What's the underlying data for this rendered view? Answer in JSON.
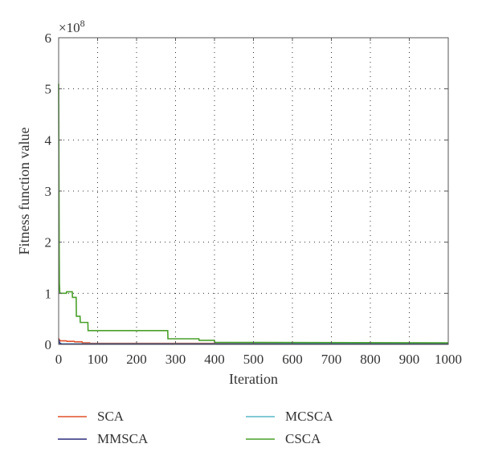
{
  "chart_data": {
    "type": "line",
    "xlabel": "Iteration",
    "ylabel": "Fitness function value",
    "y_multiplier_label": "×10",
    "y_multiplier_exponent": "8",
    "xlim": [
      0,
      1000
    ],
    "ylim": [
      0,
      6
    ],
    "x_ticks": [
      0,
      100,
      200,
      300,
      400,
      500,
      600,
      700,
      800,
      900,
      1000
    ],
    "y_ticks": [
      0,
      1,
      2,
      3,
      4,
      5,
      6
    ],
    "grid": "dotted",
    "legend_position": "below",
    "series": [
      {
        "name": "SCA",
        "color": "#e0502a",
        "x": [
          0,
          1,
          3,
          5,
          20,
          21,
          40,
          41,
          60,
          61,
          80,
          81,
          1000
        ],
        "y": [
          0.12,
          0.1,
          0.08,
          0.07,
          0.07,
          0.06,
          0.06,
          0.05,
          0.05,
          0.03,
          0.03,
          0.02,
          0.02
        ]
      },
      {
        "name": "MCSCA",
        "color": "#5ab8c8",
        "x": [
          0,
          1,
          3,
          10,
          30,
          1000
        ],
        "y": [
          0.06,
          0.04,
          0.02,
          0.01,
          0.01,
          0.01
        ]
      },
      {
        "name": "MMSCA",
        "color": "#2a2a7a",
        "x": [
          0,
          1,
          2,
          4,
          6,
          10,
          1000
        ],
        "y": [
          0.1,
          0.08,
          0.04,
          0.02,
          0.01,
          0.005,
          0.005
        ]
      },
      {
        "name": "CSCA",
        "color": "#4aa02a",
        "x": [
          0,
          1,
          1.5,
          2,
          3,
          4,
          20,
          20.5,
          35,
          35.5,
          45,
          45.5,
          55,
          55.5,
          75,
          75.5,
          280,
          280.5,
          360,
          360.5,
          400,
          400.5,
          1000
        ],
        "y": [
          5.1,
          3.0,
          1.8,
          1.2,
          1.02,
          1.0,
          1.0,
          1.03,
          1.03,
          0.92,
          0.92,
          0.55,
          0.55,
          0.43,
          0.43,
          0.27,
          0.27,
          0.11,
          0.11,
          0.08,
          0.08,
          0.04,
          0.03
        ]
      }
    ]
  }
}
